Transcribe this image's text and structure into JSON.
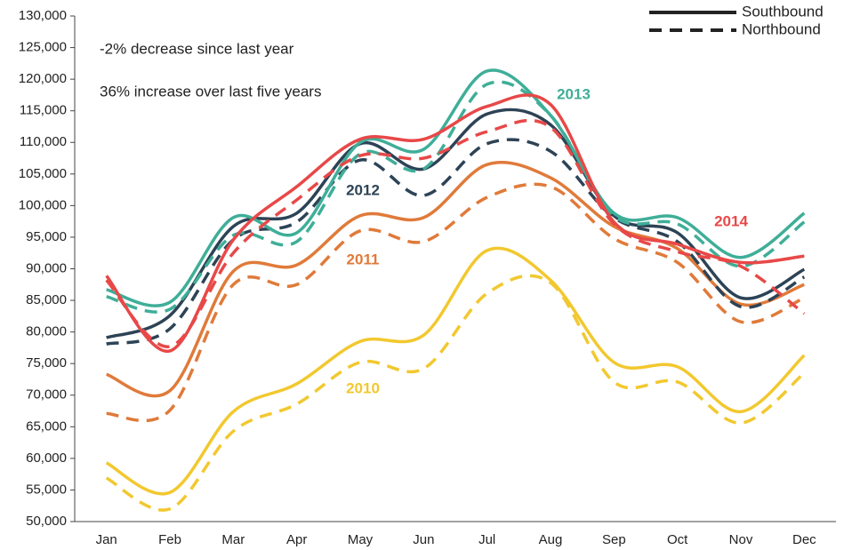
{
  "chart_data": {
    "type": "line",
    "annotations": [
      "-2% decrease since last year",
      "36% increase over last five years"
    ],
    "legend": [
      {
        "name": "Southbound",
        "dashed": false
      },
      {
        "name": "Northbound",
        "dashed": true
      }
    ],
    "categories": [
      "Jan",
      "Feb",
      "Mar",
      "Apr",
      "May",
      "Jun",
      "Jul",
      "Aug",
      "Sep",
      "Oct",
      "Nov",
      "Dec"
    ],
    "series": [
      {
        "name": "2010",
        "color": "#f2c82f",
        "values": [
          [
            59300,
            54600,
            67400,
            71800,
            78500,
            79500,
            92900,
            88200,
            75200,
            74500,
            67400,
            76300
          ],
          [
            56900,
            52000,
            64300,
            68600,
            75200,
            74200,
            86100,
            87800,
            72100,
            72100,
            65600,
            73500
          ]
        ]
      },
      {
        "name": "2011",
        "color": "#e07a3a",
        "values": [
          [
            73300,
            70700,
            89600,
            90600,
            98400,
            98100,
            106500,
            104400,
            96700,
            93200,
            84400,
            87500
          ],
          [
            67100,
            67600,
            87500,
            87500,
            96000,
            94300,
            101300,
            103000,
            94800,
            91000,
            81600,
            85400
          ]
        ]
      },
      {
        "name": "2012",
        "color": "#2d4356",
        "values": [
          [
            79100,
            82600,
            96700,
            98800,
            109800,
            105800,
            114500,
            112800,
            98400,
            95700,
            85400,
            89900
          ],
          [
            78100,
            80500,
            94600,
            97400,
            107200,
            101600,
            109800,
            108600,
            98100,
            94300,
            84000,
            88700
          ]
        ]
      },
      {
        "name": "2013",
        "color": "#3fae98",
        "values": [
          [
            86700,
            84700,
            98100,
            95700,
            110000,
            108900,
            121300,
            114300,
            98800,
            98100,
            91800,
            98800
          ],
          [
            85600,
            83600,
            95300,
            94300,
            108200,
            105800,
            119200,
            114300,
            98400,
            97100,
            90400,
            97400
          ]
        ]
      },
      {
        "name": "2014",
        "color": "#e84848",
        "values": [
          [
            88900,
            77000,
            94600,
            103000,
            110500,
            110500,
            115700,
            116000,
            97400,
            93900,
            91000,
            92000
          ],
          [
            88200,
            77700,
            92500,
            100900,
            107900,
            107500,
            111700,
            112400,
            97100,
            92700,
            90400,
            82900
          ]
        ]
      }
    ],
    "ylim": [
      50000,
      130000
    ],
    "yticks": [
      {
        "value": 50000,
        "label": "50,000"
      },
      {
        "value": 55000,
        "label": "55,000"
      },
      {
        "value": 60000,
        "label": "60,000"
      },
      {
        "value": 65000,
        "label": "65,000"
      },
      {
        "value": 70000,
        "label": "70,000"
      },
      {
        "value": 75000,
        "label": "75,000"
      },
      {
        "value": 80000,
        "label": "80,000"
      },
      {
        "value": 85000,
        "label": "85,000"
      },
      {
        "value": 90000,
        "label": "90,000"
      },
      {
        "value": 95000,
        "label": "95,000"
      },
      {
        "value": 100000,
        "label": "100,000"
      },
      {
        "value": 105000,
        "label": "105,000"
      },
      {
        "value": 110000,
        "label": "110,000"
      },
      {
        "value": 115000,
        "label": "115,000"
      },
      {
        "value": 120000,
        "label": "120,000"
      },
      {
        "value": 125000,
        "label": "125,000"
      },
      {
        "value": 130000,
        "label": "130,000"
      }
    ],
    "grid": false
  }
}
